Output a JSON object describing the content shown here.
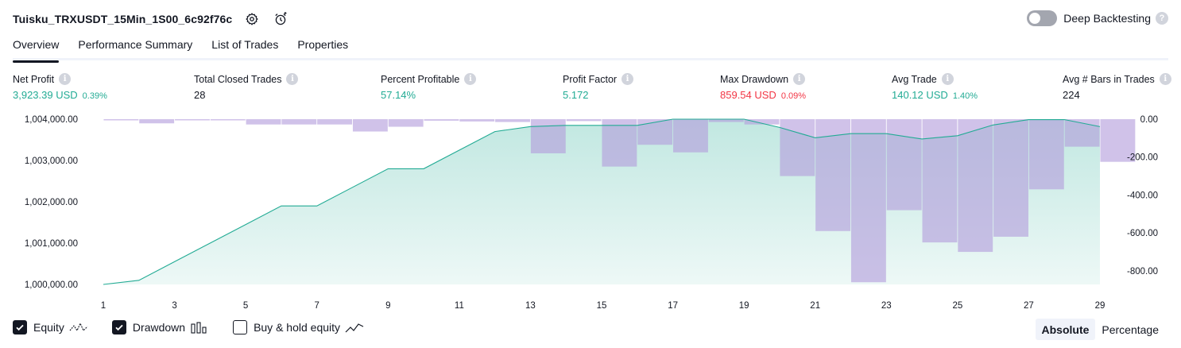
{
  "header": {
    "strategy_name": "Tuisku_TRXUSDT_15Min_1S00_6c92f76c",
    "settings_icon": "gear-icon",
    "alert_icon": "alarm-clock-icon",
    "deep_backtesting_label": "Deep Backtesting",
    "deep_backtesting_enabled": false
  },
  "tabs": [
    {
      "label": "Overview",
      "active": true
    },
    {
      "label": "Performance Summary",
      "active": false
    },
    {
      "label": "List of Trades",
      "active": false
    },
    {
      "label": "Properties",
      "active": false
    }
  ],
  "stats": [
    {
      "label": "Net Profit",
      "value": "3,923.39 USD",
      "pct": "0.39%",
      "color": "#22ab94"
    },
    {
      "label": "Total Closed Trades",
      "value": "28",
      "pct": "",
      "color": "#131722"
    },
    {
      "label": "Percent Profitable",
      "value": "57.14%",
      "pct": "",
      "color": "#22ab94"
    },
    {
      "label": "Profit Factor",
      "value": "5.172",
      "pct": "",
      "color": "#22ab94"
    },
    {
      "label": "Max Drawdown",
      "value": "859.54 USD",
      "pct": "0.09%",
      "color": "#f23645"
    },
    {
      "label": "Avg Trade",
      "value": "140.12 USD",
      "pct": "1.40%",
      "color": "#22ab94"
    },
    {
      "label": "Avg # Bars in Trades",
      "value": "224",
      "pct": "",
      "color": "#131722"
    }
  ],
  "chart_data": {
    "type": "line",
    "x_ticks": [
      "1",
      "3",
      "5",
      "7",
      "9",
      "11",
      "13",
      "15",
      "17",
      "19",
      "21",
      "23",
      "25",
      "27",
      "29"
    ],
    "x": [
      1,
      2,
      3,
      4,
      5,
      6,
      7,
      8,
      9,
      10,
      11,
      12,
      13,
      14,
      15,
      16,
      17,
      18,
      19,
      20,
      21,
      22,
      23,
      24,
      25,
      26,
      27,
      28,
      29
    ],
    "left_axis": {
      "ticks": [
        "1,004,000.00",
        "1,003,000.00",
        "1,002,000.00",
        "1,001,000.00",
        "1,000,000.00"
      ],
      "tick_values": [
        1004000,
        1003000,
        1002000,
        1001000,
        1000000
      ],
      "ylim": [
        1000000,
        1004000
      ]
    },
    "right_axis": {
      "ticks": [
        "0.00",
        "-200.00",
        "-400.00",
        "-600.00",
        "-800.00"
      ],
      "tick_values": [
        0,
        -200,
        -400,
        -600,
        -800
      ],
      "ylim": [
        -880,
        0
      ]
    },
    "series": [
      {
        "name": "Equity",
        "kind": "area-line",
        "color": "#22ab94",
        "values": [
          1000000,
          1000100,
          1000550,
          1001000,
          1001450,
          1001900,
          1001900,
          1002350,
          1002800,
          1002800,
          1003250,
          1003700,
          1003820,
          1003850,
          1003850,
          1003850,
          1004000,
          1004000,
          1004000,
          1003800,
          1003550,
          1003650,
          1003650,
          1003520,
          1003600,
          1003860,
          1003990,
          1003990,
          1003820
        ]
      },
      {
        "name": "Drawdown",
        "kind": "bar",
        "color": "#b39ddb",
        "values": [
          0,
          -22,
          -5,
          -5,
          -28,
          -28,
          -28,
          -65,
          -40,
          -8,
          -12,
          -15,
          -180,
          -10,
          -250,
          -135,
          -175,
          -15,
          -28,
          -300,
          -590,
          -860,
          -480,
          -650,
          -700,
          -620,
          -370,
          -145,
          -225
        ]
      }
    ]
  },
  "legend": [
    {
      "label": "Equity",
      "checked": true,
      "icon": "equity-line-icon"
    },
    {
      "label": "Drawdown",
      "checked": true,
      "icon": "drawdown-bars-icon"
    },
    {
      "label": "Buy & hold equity",
      "checked": false,
      "icon": "buy-hold-line-icon"
    }
  ],
  "mode": {
    "absolute_label": "Absolute",
    "percentage_label": "Percentage",
    "selected": "Absolute"
  }
}
